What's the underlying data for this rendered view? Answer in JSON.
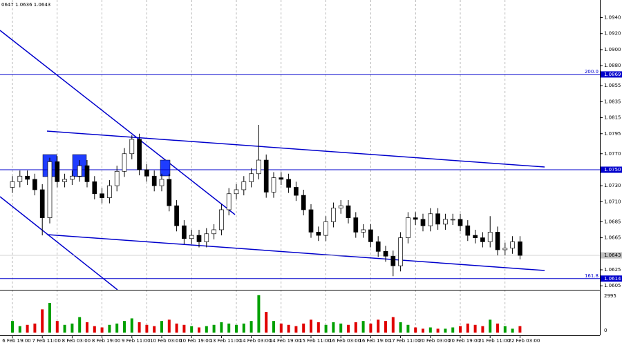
{
  "chart_data": {
    "type": "candlestick",
    "header": "0647 1.0636 1.0643",
    "categories": [
      "6 Feb 19:00",
      null,
      null,
      null,
      "7 Feb 11:00",
      null,
      null,
      null,
      "8 Feb 03:00",
      null,
      null,
      null,
      "8 Feb 19:00",
      null,
      null,
      null,
      "9 Feb 11:00",
      null,
      null,
      null,
      "10 Feb 03:00",
      null,
      null,
      null,
      "10 Feb 19:00",
      null,
      null,
      null,
      "13 Feb 11:00",
      null,
      null,
      null,
      "14 Feb 03:00",
      null,
      null,
      null,
      "14 Feb 19:00",
      null,
      null,
      null,
      "15 Feb 11:00",
      null,
      null,
      null,
      "16 Feb 03:00",
      null,
      null,
      null,
      "16 Feb 19:00",
      null,
      null,
      null,
      "17 Feb 11:00",
      null,
      null,
      null,
      "20 Feb 03:00",
      null,
      null,
      null,
      "20 Feb 19:00",
      null,
      null,
      null,
      "21 Feb 11:00",
      null,
      null,
      null,
      "22 Feb 03:00"
    ],
    "open": [
      1.0728,
      1.0735,
      1.0742,
      1.0738,
      1.0725,
      1.069,
      1.076,
      1.0735,
      1.0738,
      1.0742,
      1.0755,
      1.0735,
      1.072,
      1.0715,
      1.073,
      1.0748,
      1.077,
      1.0788,
      1.075,
      1.0742,
      1.073,
      1.0738,
      1.0705,
      1.068,
      1.0664,
      1.0668,
      1.066,
      1.067,
      1.0675,
      1.07,
      1.072,
      1.0725,
      1.0735,
      1.0745,
      1.0762,
      1.0722,
      1.074,
      1.0738,
      1.0728,
      1.0718,
      1.07,
      1.0672,
      1.0668,
      1.0685,
      1.0702,
      1.0705,
      1.069,
      1.0672,
      1.0675,
      1.066,
      1.0648,
      1.0642,
      1.063,
      1.0665,
      1.069,
      1.0688,
      1.068,
      1.0695,
      1.0682,
      1.0688,
      1.0688,
      1.068,
      1.0668,
      1.0665,
      1.066,
      1.0672,
      1.065,
      1.0652,
      1.066
    ],
    "high": [
      1.0742,
      1.0749,
      1.0749,
      1.0745,
      1.0732,
      1.0765,
      1.0767,
      1.0745,
      1.0749,
      1.0762,
      1.0762,
      1.0742,
      1.0727,
      1.0737,
      1.0755,
      1.0777,
      1.0793,
      1.0795,
      1.0757,
      1.0749,
      1.0745,
      1.0745,
      1.0712,
      1.0687,
      1.0675,
      1.0675,
      1.0677,
      1.0682,
      1.0707,
      1.0727,
      1.0732,
      1.0742,
      1.0752,
      1.0806,
      1.0769,
      1.0747,
      1.0747,
      1.0745,
      1.0735,
      1.0725,
      1.0707,
      1.0679,
      1.0692,
      1.0709,
      1.0712,
      1.0712,
      1.0697,
      1.0682,
      1.0682,
      1.0667,
      1.0655,
      1.0649,
      1.0672,
      1.0697,
      1.0697,
      1.0695,
      1.0702,
      1.0702,
      1.0695,
      1.0695,
      1.0695,
      1.0687,
      1.0675,
      1.0672,
      1.0692,
      1.0679,
      1.0659,
      1.0667,
      1.0667
    ],
    "low": [
      1.0721,
      1.0728,
      1.0731,
      1.0718,
      1.0668,
      1.0683,
      1.0728,
      1.0728,
      1.0731,
      1.0735,
      1.0728,
      1.0713,
      1.0708,
      1.0708,
      1.0723,
      1.0741,
      1.0763,
      1.0743,
      1.0735,
      1.0723,
      1.0723,
      1.0698,
      1.0673,
      1.0657,
      1.0657,
      1.0653,
      1.0653,
      1.0663,
      1.0668,
      1.0693,
      1.0713,
      1.0718,
      1.0728,
      1.0738,
      1.0715,
      1.0715,
      1.0731,
      1.0721,
      1.0711,
      1.0693,
      1.0665,
      1.0661,
      1.0661,
      1.0678,
      1.0695,
      1.0683,
      1.0665,
      1.0665,
      1.0653,
      1.0641,
      1.0635,
      1.0617,
      1.0623,
      1.0658,
      1.0681,
      1.0673,
      1.0673,
      1.0675,
      1.0675,
      1.0681,
      1.0673,
      1.0661,
      1.0658,
      1.0653,
      1.0653,
      1.0643,
      1.0643,
      1.0645,
      1.0638
    ],
    "close": [
      1.0735,
      1.0742,
      1.0738,
      1.0725,
      1.069,
      1.076,
      1.0735,
      1.0738,
      1.0742,
      1.0755,
      1.0735,
      1.072,
      1.0715,
      1.073,
      1.0748,
      1.077,
      1.0788,
      1.075,
      1.0742,
      1.073,
      1.0738,
      1.0705,
      1.068,
      1.0664,
      1.0668,
      1.066,
      1.067,
      1.0675,
      1.07,
      1.072,
      1.0725,
      1.0735,
      1.0745,
      1.0762,
      1.0722,
      1.074,
      1.0738,
      1.0728,
      1.0718,
      1.07,
      1.0672,
      1.0668,
      1.0685,
      1.0702,
      1.0705,
      1.069,
      1.0672,
      1.0675,
      1.066,
      1.0648,
      1.0642,
      1.063,
      1.0665,
      1.069,
      1.0688,
      1.068,
      1.0695,
      1.0682,
      1.0688,
      1.0688,
      1.068,
      1.0668,
      1.0665,
      1.066,
      1.0672,
      1.065,
      1.0652,
      1.066,
      1.0643
    ],
    "volume": [
      900,
      500,
      600,
      700,
      1800,
      2300,
      900,
      600,
      700,
      1200,
      800,
      500,
      400,
      600,
      700,
      900,
      1100,
      800,
      600,
      500,
      900,
      1000,
      700,
      600,
      500,
      400,
      500,
      600,
      800,
      700,
      600,
      700,
      900,
      2900,
      1600,
      900,
      700,
      600,
      500,
      700,
      1000,
      800,
      600,
      800,
      700,
      600,
      800,
      900,
      700,
      1000,
      900,
      1200,
      800,
      600,
      400,
      300,
      400,
      300,
      300,
      400,
      500,
      700,
      600,
      500,
      1000,
      700,
      500,
      300,
      500
    ],
    "ylim": [
      1.06,
      1.0962
    ],
    "yticks": [
      {
        "value": 1.094,
        "label": "1.0940"
      },
      {
        "value": 1.092,
        "label": "1.0920"
      },
      {
        "value": 1.09,
        "label": "1.0900"
      },
      {
        "value": 1.088,
        "label": "1.0880"
      },
      {
        "value": 1.0855,
        "label": "1.0855"
      },
      {
        "value": 1.0835,
        "label": "1.0835"
      },
      {
        "value": 1.0815,
        "label": "1.0815"
      },
      {
        "value": 1.0795,
        "label": "1.0795"
      },
      {
        "value": 1.077,
        "label": "1.0770"
      },
      {
        "value": 1.073,
        "label": "1.0730"
      },
      {
        "value": 1.071,
        "label": "1.0710"
      },
      {
        "value": 1.0685,
        "label": "1.0685"
      },
      {
        "value": 1.0665,
        "label": "1.0665"
      },
      {
        "value": 1.0625,
        "label": "1.0625"
      },
      {
        "value": 1.0605,
        "label": "1.0605"
      }
    ],
    "levels": [
      {
        "value": 1.0869,
        "label": "1.0869",
        "tag": "200.0"
      },
      {
        "value": 1.075,
        "label": "1.0750"
      },
      {
        "value": 1.0614,
        "label": "1.0614",
        "tag": "161.8"
      }
    ],
    "current": {
      "value": 1.0643,
      "label": "1.0643"
    },
    "level_color": "#0000cc",
    "up_color": "#ffffff",
    "down_color": "#000000",
    "volume_up_color": "#00a000",
    "volume_down_color": "#e00000",
    "y2lim": [
      0,
      2995
    ],
    "y2ticks": [
      0,
      2995
    ],
    "grid": true
  }
}
